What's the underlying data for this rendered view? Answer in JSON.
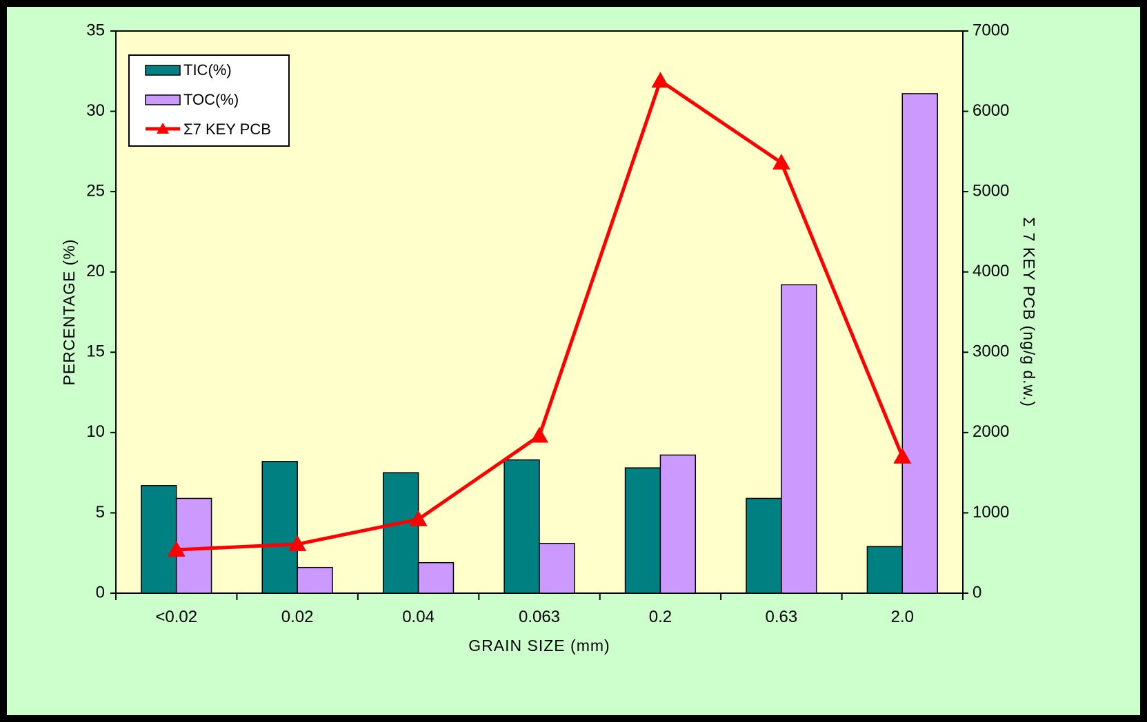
{
  "chart_data": {
    "type": "bar",
    "categories": [
      "<0.02",
      "0.02",
      "0.04",
      "0.063",
      "0.2",
      "0.63",
      "2.0"
    ],
    "series": [
      {
        "name": "TIC(%)",
        "type": "bar",
        "axis": "left",
        "color": "#008080",
        "values": [
          6.7,
          8.2,
          7.5,
          8.3,
          7.8,
          5.9,
          2.9
        ]
      },
      {
        "name": "TOC(%)",
        "type": "bar",
        "axis": "left",
        "color": "#cc99ff",
        "values": [
          5.9,
          1.6,
          1.9,
          3.1,
          8.6,
          19.2,
          31.1
        ]
      },
      {
        "name": "Σ7 KEY PCB",
        "type": "line",
        "axis": "right",
        "color": "#ff0000",
        "marker": "triangle",
        "values": [
          540,
          610,
          920,
          1960,
          6380,
          5360,
          1700
        ]
      }
    ],
    "xlabel": "GRAIN SIZE (mm)",
    "ylabel": "PERCENTAGE (%)",
    "y2label": "Σ 7 KEY PCB (ng/g d.w.)",
    "ylim": [
      0,
      35
    ],
    "y2lim": [
      0,
      7000
    ],
    "yticks": [
      "0",
      "5",
      "10",
      "15",
      "20",
      "25",
      "30",
      "35"
    ],
    "y2ticks": [
      "0",
      "1000",
      "2000",
      "3000",
      "4000",
      "5000",
      "6000",
      "7000"
    ],
    "legend_position": "top-left",
    "grid": false,
    "colors": {
      "plot_background": "#ffffcc",
      "frame_background": "#ccffcc"
    }
  }
}
